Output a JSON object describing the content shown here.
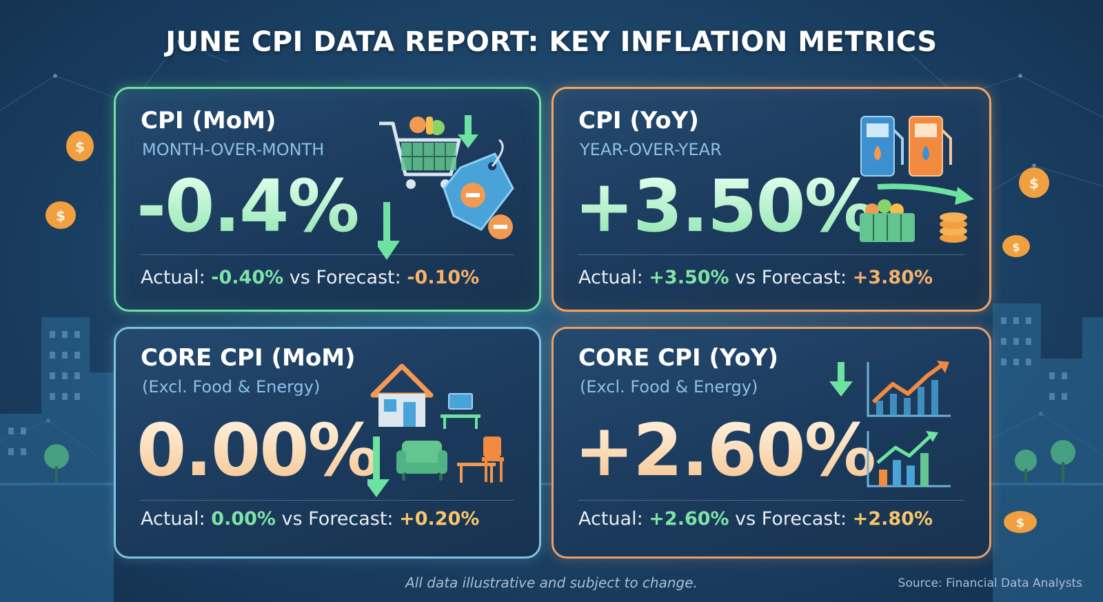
{
  "title": "JUNE CPI DATA REPORT: KEY INFLATION METRICS",
  "cards": [
    {
      "title": "CPI (MoM)",
      "subtitle": "MONTH-OVER-MONTH",
      "value": "-0.4%",
      "actual_label": "Actual:",
      "actual": "-0.40%",
      "vs_label": "vs Forecast:",
      "forecast": "-0.10%",
      "icons": [
        "shopping-cart-icon",
        "down-arrow-icon",
        "price-tag-icon",
        "minus-icon"
      ]
    },
    {
      "title": "CPI (YoY)",
      "subtitle": "YEAR-OVER-YEAR",
      "value": "+3.50%",
      "actual_label": "Actual:",
      "actual": "+3.50%",
      "vs_label": "vs Forecast:",
      "forecast": "+3.80%",
      "icons": [
        "fuel-pump-icon",
        "grocery-basket-icon",
        "coin-stack-icon",
        "curved-arrow-icon"
      ]
    },
    {
      "title": "CORE CPI (MoM)",
      "subtitle": "(Excl. Food & Energy)",
      "value": "0.00%",
      "actual_label": "Actual:",
      "actual": "0.00%",
      "vs_label": "vs Forecast:",
      "forecast": "+0.20%",
      "icons": [
        "house-icon",
        "desk-icon",
        "armchair-icon",
        "chair-icon",
        "down-arrow-icon"
      ]
    },
    {
      "title": "CORE CPI (YoY)",
      "subtitle": "(Excl. Food & Energy)",
      "value": "+2.60%",
      "actual_label": "Actual:",
      "actual": "+2.60%",
      "vs_label": "vs Forecast:",
      "forecast": "+2.80%",
      "icons": [
        "down-arrow-icon",
        "rising-line-chart-icon",
        "bar-chart-icon"
      ]
    }
  ],
  "disclaimer": "All data illustrative and subject to change.",
  "source": "Source: Financial Data Analysts",
  "colors": {
    "accent_green": "#7ee3a6",
    "accent_orange": "#f6b26b",
    "accent_yellow": "#f7c56a",
    "background": "#1d4569"
  }
}
